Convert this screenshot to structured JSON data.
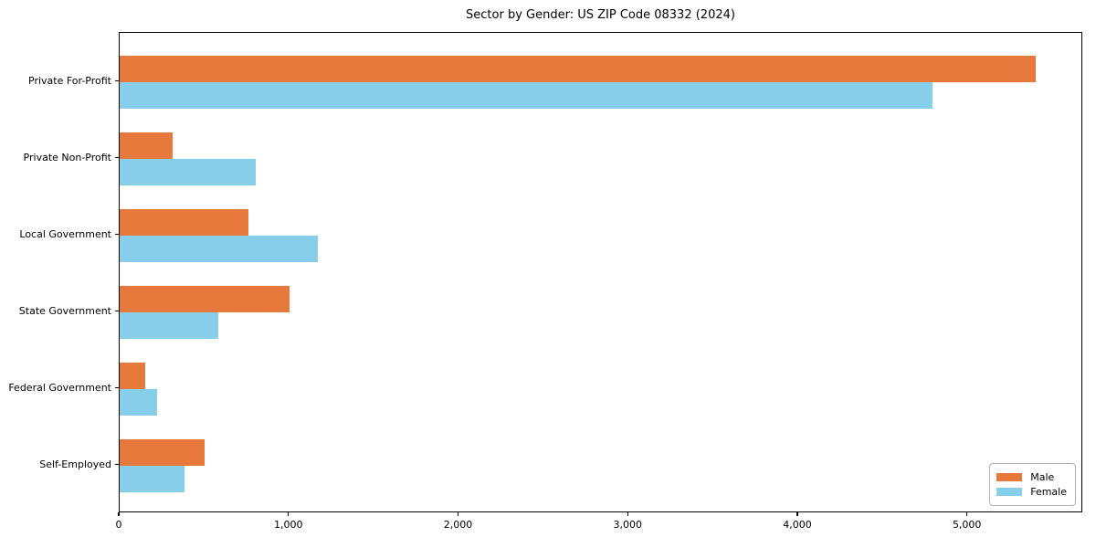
{
  "chart_data": {
    "type": "bar",
    "orientation": "horizontal",
    "title": "Sector by Gender: US ZIP Code 08332 (2024)",
    "categories": [
      "Private For-Profit",
      "Private Non-Profit",
      "Local Government",
      "State Government",
      "Federal Government",
      "Self-Employed"
    ],
    "series": [
      {
        "name": "Male",
        "color": "#e8793d",
        "values": [
          5400,
          310,
          760,
          1000,
          150,
          500
        ]
      },
      {
        "name": "Female",
        "color": "#87ceeb",
        "values": [
          4790,
          800,
          1170,
          580,
          220,
          380
        ]
      }
    ],
    "xlabel": "",
    "ylabel": "",
    "xlim": [
      0,
      5680
    ],
    "x_ticks": [
      0,
      1000,
      2000,
      3000,
      4000,
      5000
    ],
    "x_tick_labels": [
      "0",
      "1,000",
      "2,000",
      "3,000",
      "4,000",
      "5,000"
    ],
    "grid": false,
    "legend_position": "lower right",
    "background_color": "#ffffff",
    "axis_color": "#000000"
  }
}
